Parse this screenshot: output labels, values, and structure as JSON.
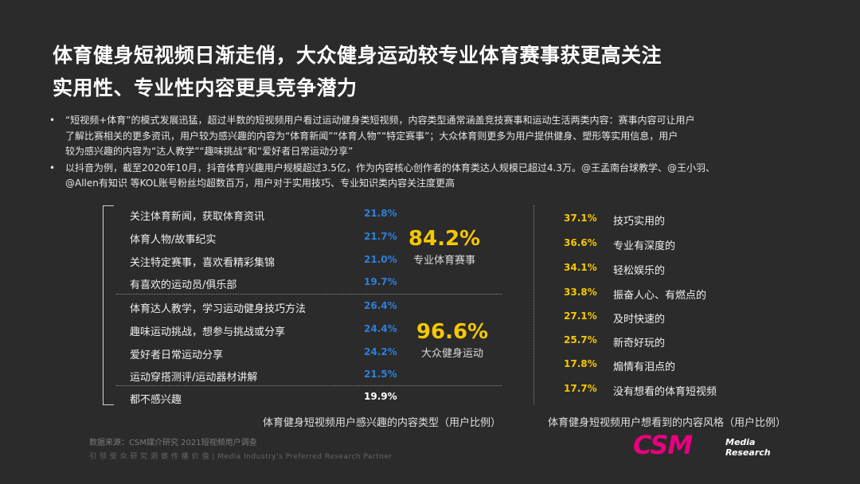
{
  "title": {
    "line1": "体育健身短视频日渐走俏，大众健身运动较专业体育赛事获更高关注",
    "line2": "实用性、专业性内容更具竞争潜力"
  },
  "bullets": [
    {
      "dot": "•",
      "lines": [
        "“短视频+体育”的模式发展迅猛，超过半数的短视频用户看过运动健身类短视频，内容类型通常涵盖竞技赛事和运动生活两类内容：赛事内容可让用户",
        "了解比赛相关的更多资讯，用户较为感兴趣的内容为“体育新闻”“体育人物”“特定赛事”；大众体育则更多为用户提供健身、塑形等实用信息，用户",
        "较为感兴趣的内容为“达人教学”“趣味挑战”和“爱好者日常运动分享”"
      ]
    },
    {
      "dot": "•",
      "lines": [
        "以抖音为例，截至2020年10月，抖音体育兴趣用户规模超过3.5亿，作为内容核心创作者的体育类达人规模已超过4.3万。@王孟南台球教学、@王小羽、",
        "@Allen有知识 等KOL账号粉丝均超数百万，用户对于实用技巧、专业知识类内容关注度更高"
      ]
    }
  ],
  "content_types": {
    "pro_group": {
      "items": [
        {
          "label": "关注体育新闻，获取体育资讯",
          "value": "21.8%"
        },
        {
          "label": "体育人物/故事纪实",
          "value": "21.7%"
        },
        {
          "label": "关注特定赛事，喜欢看精彩集锦",
          "value": "21.0%"
        },
        {
          "label": "有喜欢的运动员/俱乐部",
          "value": "19.7%"
        }
      ],
      "total": "84.2%",
      "total_label": "专业体育赛事"
    },
    "mass_group": {
      "items": [
        {
          "label": "体育达人教学，学习运动健身技巧方法",
          "value": "26.4%"
        },
        {
          "label": "趣味运动挑战，想参与挑战或分享",
          "value": "24.4%"
        },
        {
          "label": "爱好者日常运动分享",
          "value": "24.2%"
        },
        {
          "label": "运动穿搭测评/运动器材讲解",
          "value": "21.5%"
        }
      ],
      "total": "96.6%",
      "total_label": "大众健身运动"
    },
    "none": {
      "label": "都不感兴趣",
      "value": "19.9%"
    },
    "caption": "体育健身短视频用户感兴趣的内容类型（用户比例）"
  },
  "content_styles": {
    "items": [
      {
        "value": "37.1%",
        "label": "技巧实用的"
      },
      {
        "value": "36.6%",
        "label": "专业有深度的"
      },
      {
        "value": "34.1%",
        "label": "轻松娱乐的"
      },
      {
        "value": "33.8%",
        "label": "振奋人心、有燃点的"
      },
      {
        "value": "27.1%",
        "label": "及时快速的"
      },
      {
        "value": "25.7%",
        "label": "新奇好玩的"
      },
      {
        "value": "17.8%",
        "label": "煽情有泪点的"
      },
      {
        "value": "17.7%",
        "label": "没有想看的体育短视频"
      }
    ],
    "caption": "体育健身短视频用户想看到的内容风格（用户比例）"
  },
  "footer": {
    "source": "数据来源：CSM媒介研究 2021短视频用户调查",
    "slogan": "引 领 受 众 研 究   洞 察 传 播 价 值 | Media Industry's Preferred Research Partner",
    "logo_text": "CSM",
    "logo_sub1": "Media",
    "logo_sub2": "Research"
  },
  "colors": {
    "background": "#2b2b2b",
    "accent_yellow": "#f6c800",
    "accent_blue": "#2f7fd9",
    "logo_magenta": "#e6007e"
  }
}
